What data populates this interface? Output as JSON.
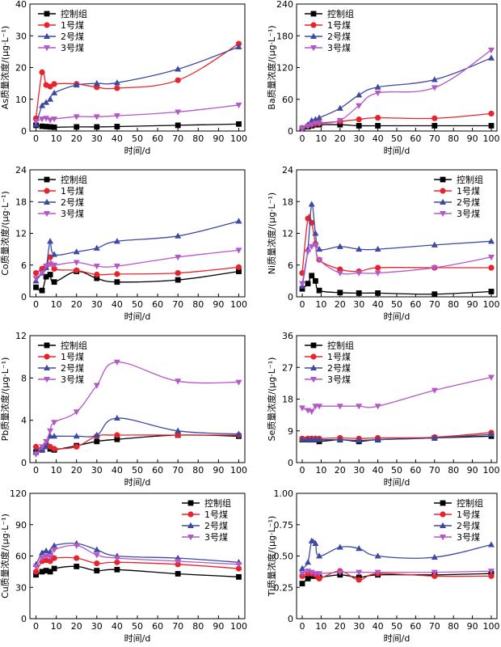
{
  "series_styles": [
    {
      "color": "#000000",
      "marker": "square"
    },
    {
      "color": "#e8232a",
      "marker": "circle"
    },
    {
      "color": "#3b4aa0",
      "marker": "triangle-up"
    },
    {
      "color": "#b457c8",
      "marker": "triangle-down"
    }
  ],
  "chart_data": [
    {
      "type": "line",
      "xlabel": "时间/d",
      "ylabel": "As质量浓度/(μg·L⁻¹)",
      "xlim": [
        -3,
        103
      ],
      "ylim": [
        0,
        40
      ],
      "xticks": [
        0,
        10,
        20,
        30,
        40,
        50,
        60,
        70,
        80,
        90,
        100
      ],
      "yticks": [
        0,
        10,
        20,
        30,
        40
      ],
      "legend_position": "top-left",
      "x": [
        0,
        3,
        5,
        7,
        9,
        20,
        30,
        40,
        70,
        100
      ],
      "series": [
        {
          "name": "控制组",
          "values": [
            1.8,
            1.5,
            1.4,
            1.3,
            1.2,
            1.3,
            1.3,
            1.4,
            1.8,
            2.2
          ]
        },
        {
          "name": "1号煤",
          "values": [
            4,
            18.5,
            14.5,
            14,
            14.8,
            14.8,
            13.8,
            13.5,
            16,
            27.5
          ]
        },
        {
          "name": "2号煤",
          "values": [
            2,
            8,
            9,
            10,
            12,
            14.5,
            15,
            15.2,
            19.5,
            26.5
          ]
        },
        {
          "name": "3号煤",
          "values": [
            3,
            3.8,
            4,
            3.5,
            3.8,
            4.5,
            4.5,
            4.8,
            6,
            8.2
          ]
        }
      ]
    },
    {
      "type": "line",
      "xlabel": "时间/d",
      "ylabel": "Ba质量浓度/(μg·L⁻¹)",
      "xlim": [
        -3,
        103
      ],
      "ylim": [
        0,
        240
      ],
      "xticks": [
        0,
        10,
        20,
        30,
        40,
        50,
        60,
        70,
        80,
        90,
        100
      ],
      "yticks": [
        0,
        60,
        120,
        180,
        240
      ],
      "legend_position": "top-left",
      "x": [
        0,
        3,
        5,
        7,
        9,
        20,
        30,
        40,
        70,
        100
      ],
      "series": [
        {
          "name": "控制组",
          "values": [
            5,
            8,
            10,
            12,
            12,
            12,
            10,
            10,
            10,
            10
          ]
        },
        {
          "name": "1号煤",
          "values": [
            5,
            10,
            12,
            14,
            15,
            18,
            22,
            25,
            24,
            33
          ]
        },
        {
          "name": "2号煤",
          "values": [
            6,
            12,
            20,
            22,
            25,
            43,
            68,
            83,
            97,
            138
          ]
        },
        {
          "name": "3号煤",
          "values": [
            5,
            9,
            12,
            15,
            14,
            20,
            48,
            72,
            82,
            153
          ]
        }
      ]
    },
    {
      "type": "line",
      "xlabel": "时间/d",
      "ylabel": "Co质量浓度/(μg·L⁻¹)",
      "xlim": [
        -3,
        103
      ],
      "ylim": [
        0,
        24
      ],
      "xticks": [
        0,
        10,
        20,
        30,
        40,
        50,
        60,
        70,
        80,
        90,
        100
      ],
      "yticks": [
        0,
        6,
        12,
        18,
        24
      ],
      "legend_position": "top-left",
      "x": [
        0,
        3,
        5,
        7,
        9,
        20,
        30,
        40,
        70,
        100
      ],
      "series": [
        {
          "name": "控制组",
          "values": [
            1.8,
            1.2,
            3.8,
            4.2,
            2.8,
            4.8,
            3.5,
            2.8,
            3.2,
            4.8
          ]
        },
        {
          "name": "1号煤",
          "values": [
            4.5,
            5.3,
            5.8,
            7.5,
            5.3,
            5,
            4.2,
            4.3,
            4.5,
            5.6
          ]
        },
        {
          "name": "2号煤",
          "values": [
            3,
            4.5,
            5.5,
            10.5,
            8,
            8.5,
            9.2,
            10.5,
            11.5,
            14.3
          ]
        },
        {
          "name": "3号煤",
          "values": [
            3.5,
            4.5,
            5.8,
            6.2,
            6,
            6.5,
            5.8,
            5.8,
            7.5,
            8.8
          ]
        }
      ]
    },
    {
      "type": "line",
      "xlabel": "时间/d",
      "ylabel": "Ni质量浓度/(μg·L⁻¹)",
      "xlim": [
        -3,
        103
      ],
      "ylim": [
        0,
        24
      ],
      "xticks": [
        0,
        10,
        20,
        30,
        40,
        50,
        60,
        70,
        80,
        90,
        100
      ],
      "yticks": [
        0,
        6,
        12,
        18,
        24
      ],
      "legend_position": "top-right",
      "x": [
        0,
        3,
        5,
        7,
        9,
        20,
        30,
        40,
        70,
        100
      ],
      "series": [
        {
          "name": "控制组",
          "values": [
            1.5,
            2.5,
            4,
            3,
            1.2,
            0.8,
            0.7,
            0.7,
            0.5,
            1
          ]
        },
        {
          "name": "1号煤",
          "values": [
            4.5,
            14.8,
            14,
            10,
            7,
            5.2,
            4.8,
            5.5,
            5.5,
            5.5
          ]
        },
        {
          "name": "2号煤",
          "values": [
            2,
            9,
            17.5,
            12,
            9,
            9.5,
            9,
            9,
            9.8,
            10.5
          ]
        },
        {
          "name": "3号煤",
          "values": [
            2.5,
            8.5,
            9.5,
            9.8,
            7,
            4.5,
            4.5,
            4.5,
            5.5,
            7.5
          ]
        }
      ]
    },
    {
      "type": "line",
      "xlabel": "时间/d",
      "ylabel": "Pb质量浓度/(μg·L⁻¹)",
      "xlim": [
        -3,
        103
      ],
      "ylim": [
        0,
        12
      ],
      "xticks": [
        0,
        10,
        20,
        30,
        40,
        50,
        60,
        70,
        80,
        90,
        100
      ],
      "yticks": [
        0,
        4,
        8,
        12
      ],
      "legend_position": "top-left",
      "x": [
        0,
        3,
        5,
        7,
        9,
        20,
        30,
        40,
        70,
        100
      ],
      "series": [
        {
          "name": "控制组",
          "values": [
            1,
            1.2,
            1.6,
            1.3,
            1.2,
            1.6,
            2,
            2.2,
            2.6,
            2.5
          ]
        },
        {
          "name": "1号煤",
          "values": [
            1.5,
            1.2,
            1.6,
            1.5,
            1.3,
            1.5,
            2.5,
            2.6,
            2.6,
            2.6
          ]
        },
        {
          "name": "2号煤",
          "values": [
            1,
            1.2,
            1.5,
            2.5,
            2.5,
            2.5,
            2.6,
            4.2,
            3,
            2.7
          ]
        },
        {
          "name": "3号煤",
          "values": [
            0.8,
            1.5,
            2,
            3,
            3.8,
            4.8,
            7.3,
            9.5,
            7.7,
            7.6
          ]
        }
      ]
    },
    {
      "type": "line",
      "xlabel": "时间/d",
      "ylabel": "Se质量浓度/(μg·L⁻¹)",
      "xlim": [
        -3,
        103
      ],
      "ylim": [
        0,
        36
      ],
      "xticks": [
        0,
        10,
        20,
        30,
        40,
        50,
        60,
        70,
        80,
        90,
        100
      ],
      "yticks": [
        0,
        9,
        18,
        27,
        36
      ],
      "legend_position": "top-left",
      "x": [
        0,
        3,
        5,
        7,
        9,
        20,
        30,
        40,
        70,
        100
      ],
      "series": [
        {
          "name": "控制组",
          "values": [
            6.5,
            6.5,
            6.5,
            6.5,
            6,
            6.5,
            6,
            6.5,
            7,
            7.5
          ]
        },
        {
          "name": "1号煤",
          "values": [
            6.8,
            6.8,
            6.8,
            6.8,
            6.8,
            7,
            6.8,
            7,
            7.2,
            8.5
          ]
        },
        {
          "name": "2号煤",
          "values": [
            6.5,
            6.5,
            6.5,
            6.5,
            6.5,
            6.5,
            6.3,
            6.5,
            7,
            8
          ]
        },
        {
          "name": "3号煤",
          "values": [
            15.5,
            14.8,
            14.5,
            16,
            16,
            16,
            16,
            16,
            20.5,
            24.2
          ]
        }
      ]
    },
    {
      "type": "line",
      "xlabel": "时间/d",
      "ylabel": "Cu质量浓度/(μg·L⁻¹)",
      "xlim": [
        -3,
        103
      ],
      "ylim": [
        0,
        120
      ],
      "xticks": [
        0,
        10,
        20,
        30,
        40,
        50,
        60,
        70,
        80,
        90,
        100
      ],
      "yticks": [
        0,
        30,
        60,
        90,
        120
      ],
      "legend_position": "top-right",
      "x": [
        0,
        3,
        5,
        7,
        9,
        20,
        30,
        40,
        70,
        100
      ],
      "series": [
        {
          "name": "控制组",
          "values": [
            42,
            45,
            46,
            45,
            48,
            50,
            46,
            47,
            43,
            40
          ]
        },
        {
          "name": "1号煤",
          "values": [
            45,
            55,
            56,
            55,
            58,
            58,
            53,
            54,
            52,
            48
          ]
        },
        {
          "name": "2号煤",
          "values": [
            52,
            63,
            65,
            64,
            70,
            72,
            66,
            60,
            58,
            54
          ]
        },
        {
          "name": "3号煤",
          "values": [
            50,
            58,
            60,
            59,
            66,
            70,
            61,
            58,
            55,
            52
          ]
        }
      ]
    },
    {
      "type": "line",
      "xlabel": "时间/d",
      "ylabel": "Ti质量浓度/(μg·L⁻¹)",
      "xlim": [
        -3,
        103
      ],
      "ylim": [
        0,
        1
      ],
      "xticks": [
        0,
        10,
        20,
        30,
        40,
        50,
        60,
        70,
        80,
        90,
        100
      ],
      "yticks": [
        0,
        0.25,
        0.5,
        0.75,
        1
      ],
      "ytick_labels": [
        "0",
        "0.25",
        "0.50",
        "0.75",
        "1.00"
      ],
      "legend_position": "top-right",
      "x": [
        0,
        3,
        5,
        7,
        9,
        20,
        30,
        40,
        70,
        100
      ],
      "series": [
        {
          "name": "控制组",
          "values": [
            0.28,
            0.32,
            0.34,
            0.34,
            0.33,
            0.35,
            0.33,
            0.35,
            0.35,
            0.36
          ]
        },
        {
          "name": "1号煤",
          "values": [
            0.34,
            0.36,
            0.36,
            0.35,
            0.32,
            0.38,
            0.31,
            0.36,
            0.34,
            0.34
          ]
        },
        {
          "name": "2号煤",
          "values": [
            0.4,
            0.45,
            0.62,
            0.6,
            0.5,
            0.57,
            0.56,
            0.5,
            0.49,
            0.59
          ]
        },
        {
          "name": "3号煤",
          "values": [
            0.36,
            0.38,
            0.37,
            0.36,
            0.36,
            0.37,
            0.37,
            0.37,
            0.37,
            0.38
          ]
        }
      ]
    }
  ]
}
